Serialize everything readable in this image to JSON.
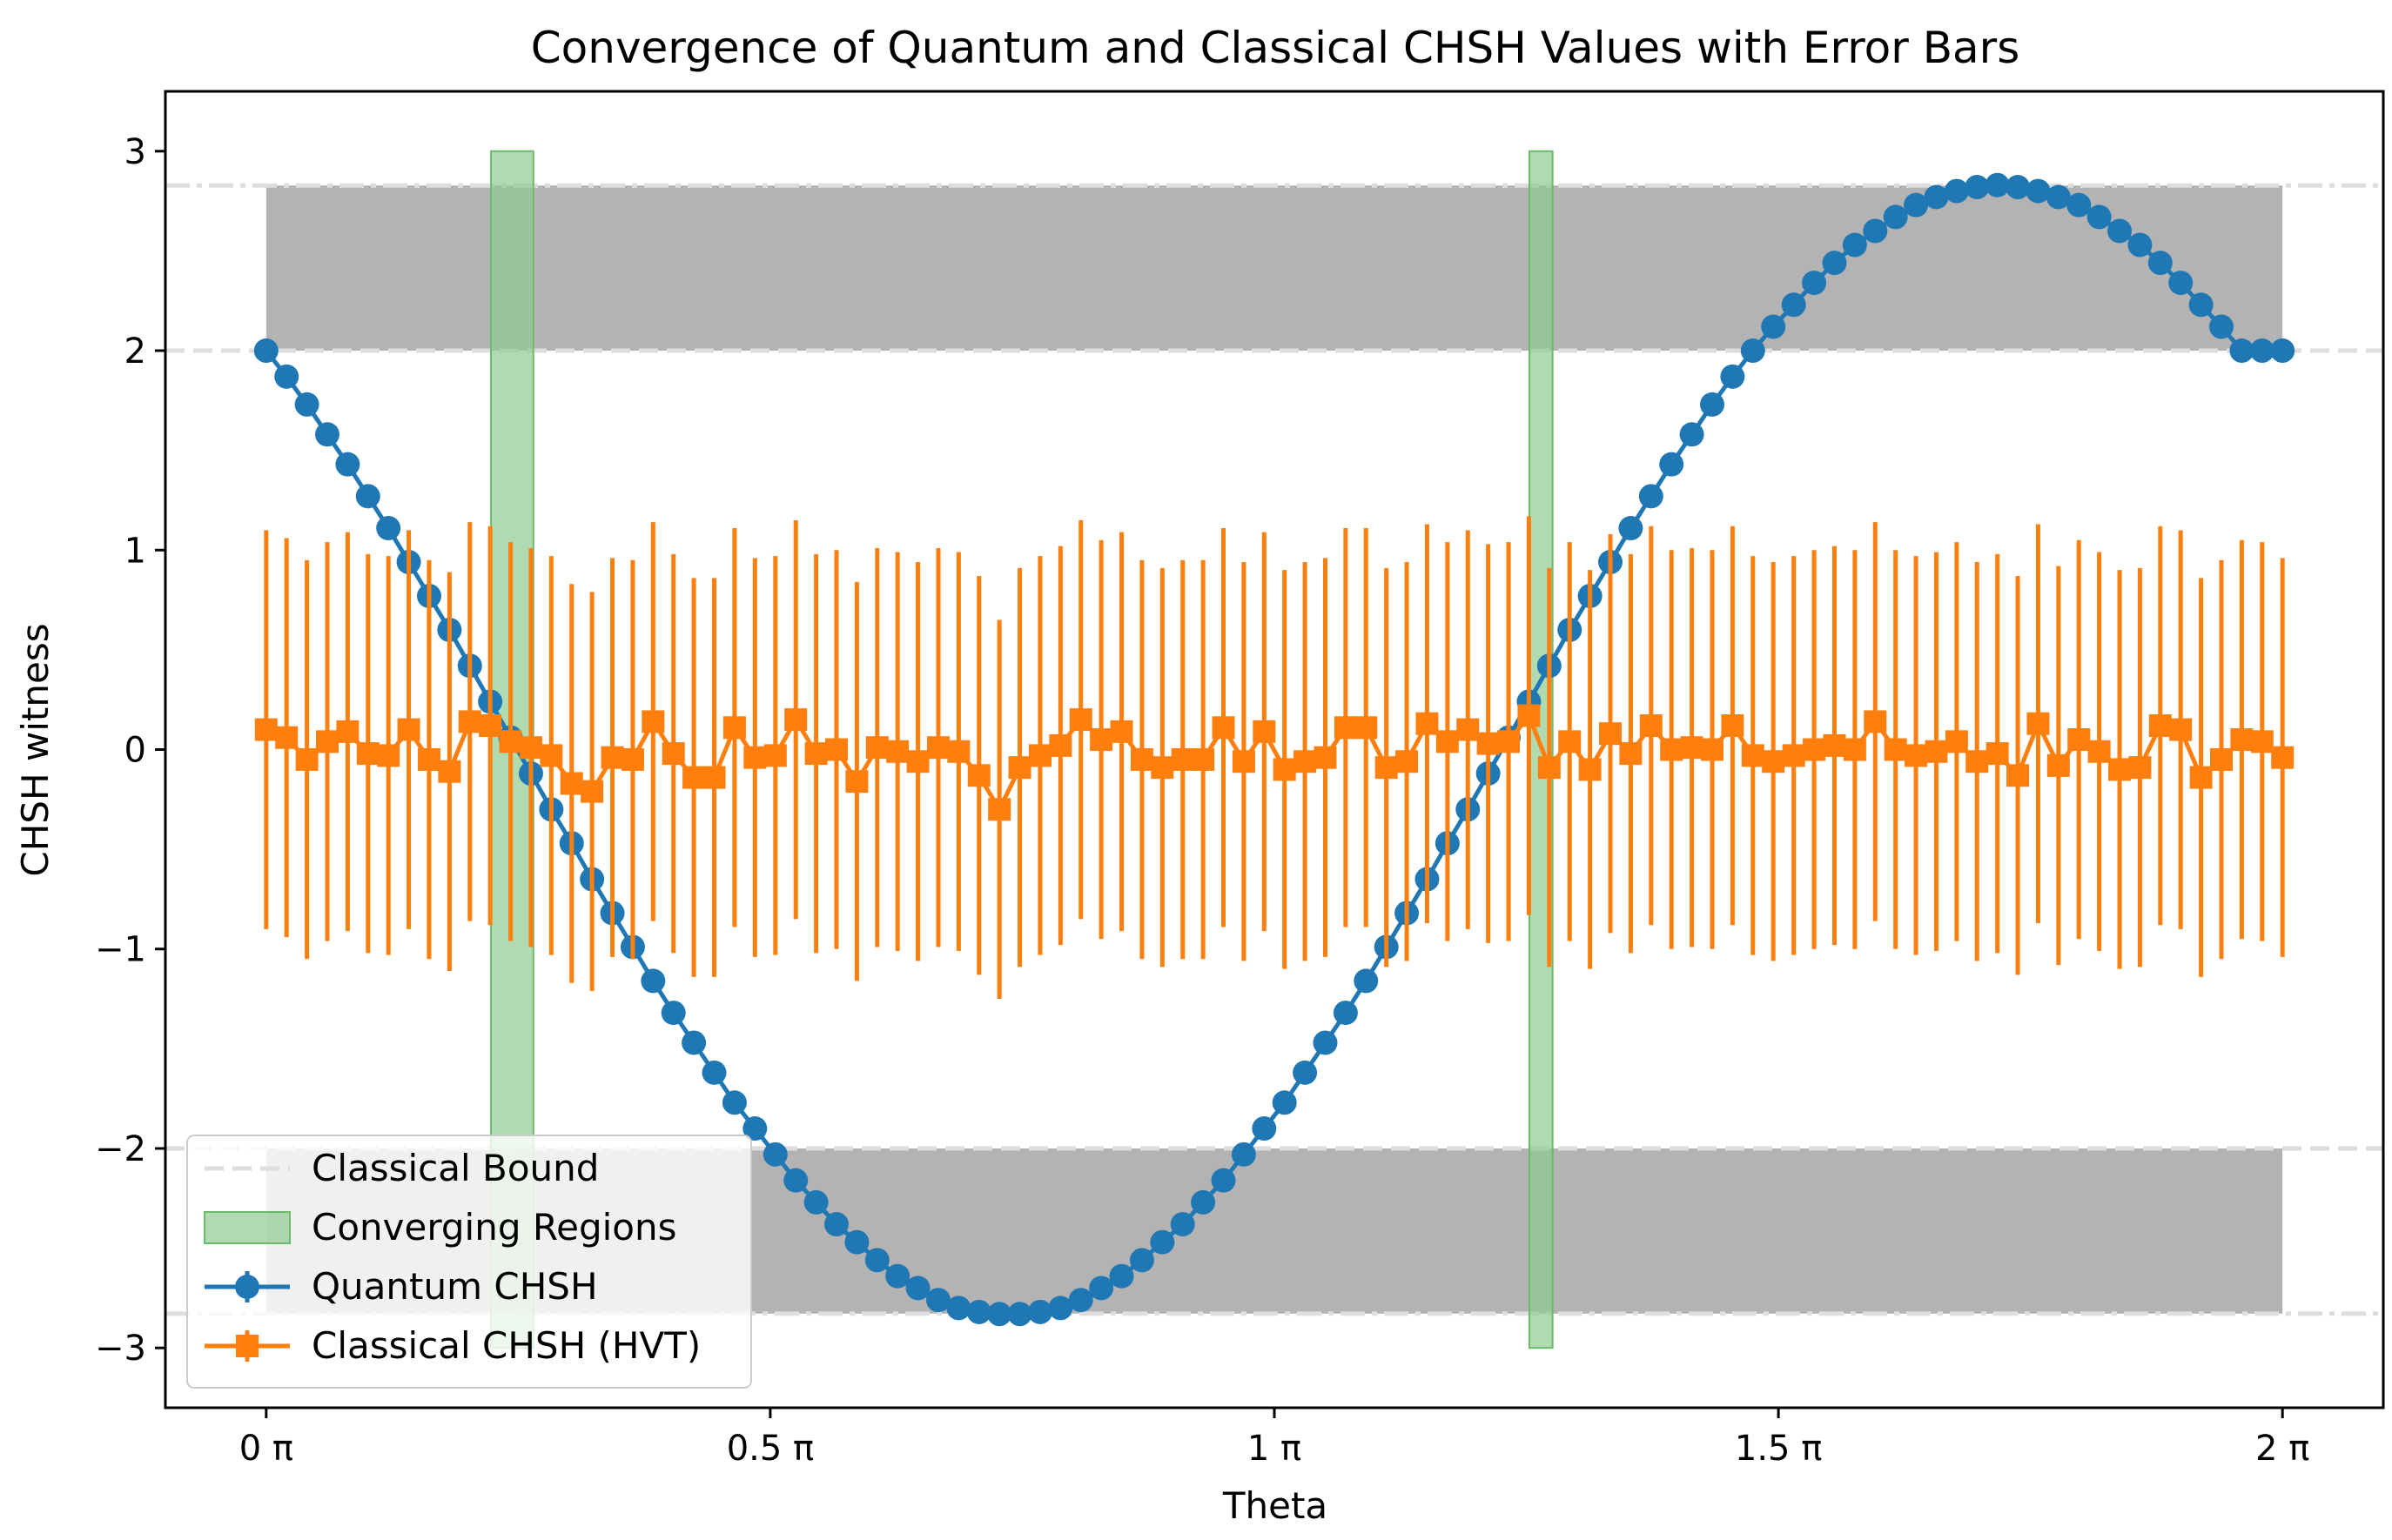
{
  "chart_data": {
    "type": "line",
    "title": "Convergence of Quantum and Classical CHSH Values with Error Bars",
    "xlabel": "Theta",
    "ylabel": "CHSH witness",
    "xlim_pi": [
      -0.1,
      2.1
    ],
    "ylim": [
      -3.3,
      3.3
    ],
    "xticks": [
      {
        "value_pi": 0,
        "label": "0 π"
      },
      {
        "value_pi": 0.5,
        "label": "0.5 π"
      },
      {
        "value_pi": 1,
        "label": "1 π"
      },
      {
        "value_pi": 1.5,
        "label": "1.5 π"
      },
      {
        "value_pi": 2,
        "label": "2 π"
      }
    ],
    "yticks": [
      {
        "value": -3,
        "label": "−3"
      },
      {
        "value": -2,
        "label": "−2"
      },
      {
        "value": -1,
        "label": "−1"
      },
      {
        "value": 0,
        "label": "0"
      },
      {
        "value": 1,
        "label": "1"
      },
      {
        "value": 2,
        "label": "2"
      },
      {
        "value": 3,
        "label": "3"
      }
    ],
    "classical_bound": {
      "name": "Classical Bound",
      "values": [
        2,
        -2
      ],
      "color": "#dddddd"
    },
    "tsirelson_bound": {
      "values": [
        2.828,
        -2.828
      ],
      "color": "#dddddd"
    },
    "violation_bands": {
      "color": "#b3b3b3",
      "ranges": [
        [
          2,
          2.828
        ],
        [
          -2.828,
          -2
        ]
      ],
      "x_pi": [
        0,
        2
      ]
    },
    "converging_regions": {
      "name": "Converging Regions",
      "color": "#8fcc8f",
      "ranges_pi": [
        [
          0.223,
          0.265
        ],
        [
          1.253,
          1.276
        ]
      ],
      "y": [
        -3,
        3
      ]
    },
    "series": [
      {
        "name": "Quantum CHSH",
        "color": "#1f77b4",
        "marker": "circle",
        "x_pi": [
          0,
          0.0202,
          0.0404,
          0.0606,
          0.0808,
          0.101,
          0.1212,
          0.1414,
          0.1616,
          0.1818,
          0.202,
          0.2222,
          0.2424,
          0.2626,
          0.2828,
          0.303,
          0.3232,
          0.3434,
          0.3636,
          0.3838,
          0.404,
          0.4242,
          0.4444,
          0.4646,
          0.4848,
          0.5051,
          0.5253,
          0.5455,
          0.5657,
          0.5859,
          0.6061,
          0.6263,
          0.6465,
          0.6667,
          0.6869,
          0.7071,
          0.7273,
          0.7475,
          0.7677,
          0.7879,
          0.8081,
          0.8283,
          0.8485,
          0.8687,
          0.8889,
          0.9091,
          0.9293,
          0.9495,
          0.9697,
          0.9899,
          1.0101,
          1.0303,
          1.0505,
          1.0707,
          1.0909,
          1.1111,
          1.1313,
          1.1515,
          1.1717,
          1.1919,
          1.2121,
          1.2323,
          1.2525,
          1.2727,
          1.2929,
          1.3131,
          1.3333,
          1.3535,
          1.3737,
          1.3939,
          1.4141,
          1.4343,
          1.4545,
          1.4747,
          1.4949,
          1.5152,
          1.5354,
          1.5556,
          1.5758,
          1.596,
          1.6162,
          1.6364,
          1.6566,
          1.6768,
          1.697,
          1.7172,
          1.7374,
          1.7576,
          1.7778,
          1.798,
          1.8182,
          1.8384,
          1.8586,
          1.8788,
          1.899,
          1.9192,
          1.9394,
          1.9596,
          1.9798,
          2.0
        ],
        "values": [
          2.0,
          1.87,
          1.73,
          1.58,
          1.43,
          1.27,
          1.11,
          0.94,
          0.77,
          0.6,
          0.42,
          0.24,
          0.06,
          -0.12,
          -0.3,
          -0.47,
          -0.65,
          -0.82,
          -0.99,
          -1.16,
          -1.32,
          -1.47,
          -1.62,
          -1.77,
          -1.9,
          -2.03,
          -2.16,
          -2.27,
          -2.38,
          -2.47,
          -2.56,
          -2.64,
          -2.7,
          -2.76,
          -2.8,
          -2.82,
          -2.83,
          -2.83,
          -2.82,
          -2.8,
          -2.76,
          -2.7,
          -2.64,
          -2.56,
          -2.47,
          -2.38,
          -2.27,
          -2.16,
          -2.03,
          -1.9,
          -1.77,
          -1.62,
          -1.47,
          -1.32,
          -1.16,
          -0.99,
          -0.82,
          -0.65,
          -0.47,
          -0.3,
          -0.12,
          0.06,
          0.24,
          0.42,
          0.6,
          0.77,
          0.94,
          1.11,
          1.27,
          1.43,
          1.58,
          1.73,
          1.87,
          2.0,
          2.12,
          2.23,
          2.34,
          2.44,
          2.53,
          2.6,
          2.67,
          2.73,
          2.77,
          2.8,
          2.82,
          2.83,
          2.82,
          2.8,
          2.77,
          2.73,
          2.67,
          2.6,
          2.53,
          2.44,
          2.34,
          2.23,
          2.12,
          2.0,
          2.0,
          2.0
        ]
      },
      {
        "name": "Classical CHSH (HVT)",
        "color": "#ff7f0e",
        "marker": "square",
        "x_pi": [
          0,
          0.0202,
          0.0404,
          0.0606,
          0.0808,
          0.101,
          0.1212,
          0.1414,
          0.1616,
          0.1818,
          0.202,
          0.2222,
          0.2424,
          0.2626,
          0.2828,
          0.303,
          0.3232,
          0.3434,
          0.3636,
          0.3838,
          0.404,
          0.4242,
          0.4444,
          0.4646,
          0.4848,
          0.5051,
          0.5253,
          0.5455,
          0.5657,
          0.5859,
          0.6061,
          0.6263,
          0.6465,
          0.6667,
          0.6869,
          0.7071,
          0.7273,
          0.7475,
          0.7677,
          0.7879,
          0.8081,
          0.8283,
          0.8485,
          0.8687,
          0.8889,
          0.9091,
          0.9293,
          0.9495,
          0.9697,
          0.9899,
          1.0101,
          1.0303,
          1.0505,
          1.0707,
          1.0909,
          1.1111,
          1.1313,
          1.1515,
          1.1717,
          1.1919,
          1.2121,
          1.2323,
          1.2525,
          1.2727,
          1.2929,
          1.3131,
          1.3333,
          1.3535,
          1.3737,
          1.3939,
          1.4141,
          1.4343,
          1.4545,
          1.4747,
          1.4949,
          1.5152,
          1.5354,
          1.5556,
          1.5758,
          1.596,
          1.6162,
          1.6364,
          1.6566,
          1.6768,
          1.697,
          1.7172,
          1.7374,
          1.7576,
          1.7778,
          1.798,
          1.8182,
          1.8384,
          1.8586,
          1.8788,
          1.899,
          1.9192,
          1.9394,
          1.9596,
          1.9798,
          2.0
        ],
        "values": [
          0.1,
          0.06,
          -0.05,
          0.04,
          0.09,
          -0.02,
          -0.03,
          0.1,
          -0.05,
          -0.11,
          0.14,
          0.12,
          0.04,
          0.01,
          -0.03,
          -0.17,
          -0.21,
          -0.04,
          -0.05,
          0.14,
          -0.02,
          -0.14,
          -0.14,
          0.11,
          -0.04,
          -0.03,
          0.15,
          -0.02,
          0.0,
          -0.16,
          0.01,
          -0.01,
          -0.06,
          0.01,
          -0.01,
          -0.13,
          -0.3,
          -0.09,
          -0.03,
          0.02,
          0.15,
          0.05,
          0.09,
          -0.05,
          -0.09,
          -0.05,
          -0.05,
          0.11,
          -0.06,
          0.09,
          -0.1,
          -0.06,
          -0.04,
          0.11,
          0.11,
          -0.09,
          -0.06,
          0.13,
          0.04,
          0.1,
          0.03,
          0.04,
          0.17,
          -0.09,
          0.04,
          -0.1,
          0.08,
          -0.02,
          0.12,
          0.0,
          0.01,
          0.0,
          0.12,
          -0.03,
          -0.06,
          -0.03,
          0.0,
          0.02,
          0.0,
          0.14,
          0.0,
          -0.03,
          -0.01,
          0.04,
          -0.06,
          -0.02,
          -0.13,
          0.13,
          -0.08,
          0.05,
          -0.01,
          -0.1,
          -0.09,
          0.12,
          0.1,
          -0.14,
          -0.05,
          0.05,
          0.04,
          -0.04
        ],
        "errors": [
          1.0,
          1.0,
          1.0,
          1.0,
          1.0,
          1.0,
          1.0,
          1.0,
          1.0,
          1.0,
          1.0,
          1.0,
          1.0,
          1.0,
          1.0,
          1.0,
          1.0,
          1.0,
          1.0,
          1.0,
          1.0,
          1.0,
          1.0,
          1.0,
          1.0,
          1.0,
          1.0,
          1.0,
          1.0,
          1.0,
          1.0,
          1.0,
          1.0,
          1.0,
          1.0,
          1.0,
          0.95,
          1.0,
          1.0,
          1.0,
          1.0,
          1.0,
          1.0,
          1.0,
          1.0,
          1.0,
          1.0,
          1.0,
          1.0,
          1.0,
          1.0,
          1.0,
          1.0,
          1.0,
          1.0,
          1.0,
          1.0,
          1.0,
          1.0,
          1.0,
          1.0,
          1.0,
          1.0,
          1.0,
          1.0,
          1.0,
          1.0,
          1.0,
          1.0,
          1.0,
          1.0,
          1.0,
          1.0,
          1.0,
          1.0,
          1.0,
          1.0,
          1.0,
          1.0,
          1.0,
          1.0,
          1.0,
          1.0,
          1.0,
          1.0,
          1.0,
          1.0,
          1.0,
          1.0,
          1.0,
          1.0,
          1.0,
          1.0,
          1.0,
          1.0,
          1.0,
          1.0,
          1.0,
          1.0,
          1.0
        ]
      }
    ],
    "legend": {
      "placement": "lower-left",
      "entries": [
        {
          "label": "Classical Bound",
          "style": "dashed-line",
          "color": "#dddddd"
        },
        {
          "label": "Converging Regions",
          "style": "patch",
          "color": "#8fcc8f"
        },
        {
          "label": "Quantum CHSH",
          "style": "line-circle",
          "color": "#1f77b4"
        },
        {
          "label": "Classical CHSH (HVT)",
          "style": "line-square",
          "color": "#ff7f0e"
        }
      ]
    }
  }
}
